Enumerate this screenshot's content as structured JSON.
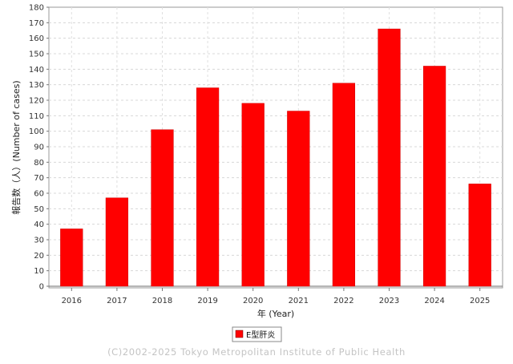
{
  "chart_data": {
    "type": "bar",
    "categories": [
      "2016",
      "2017",
      "2018",
      "2019",
      "2020",
      "2021",
      "2022",
      "2023",
      "2024",
      "2025"
    ],
    "series": [
      {
        "name": "E型肝炎",
        "values": [
          37,
          57,
          101,
          128,
          118,
          113,
          131,
          166,
          142,
          66
        ],
        "color": "#ff0000"
      }
    ],
    "xlabel": "年 (Year)",
    "ylabel": "報告数（人）(Number of cases)",
    "ylim": [
      0,
      180
    ],
    "yticks": [
      0,
      10,
      20,
      30,
      40,
      50,
      60,
      70,
      80,
      90,
      100,
      110,
      120,
      130,
      140,
      150,
      160,
      170,
      180
    ],
    "grid": true,
    "legend_placement": "bottom-center"
  },
  "footer": {
    "copyright": "(C)2002-2025 Tokyo Metropolitan Institute of Public Health"
  }
}
